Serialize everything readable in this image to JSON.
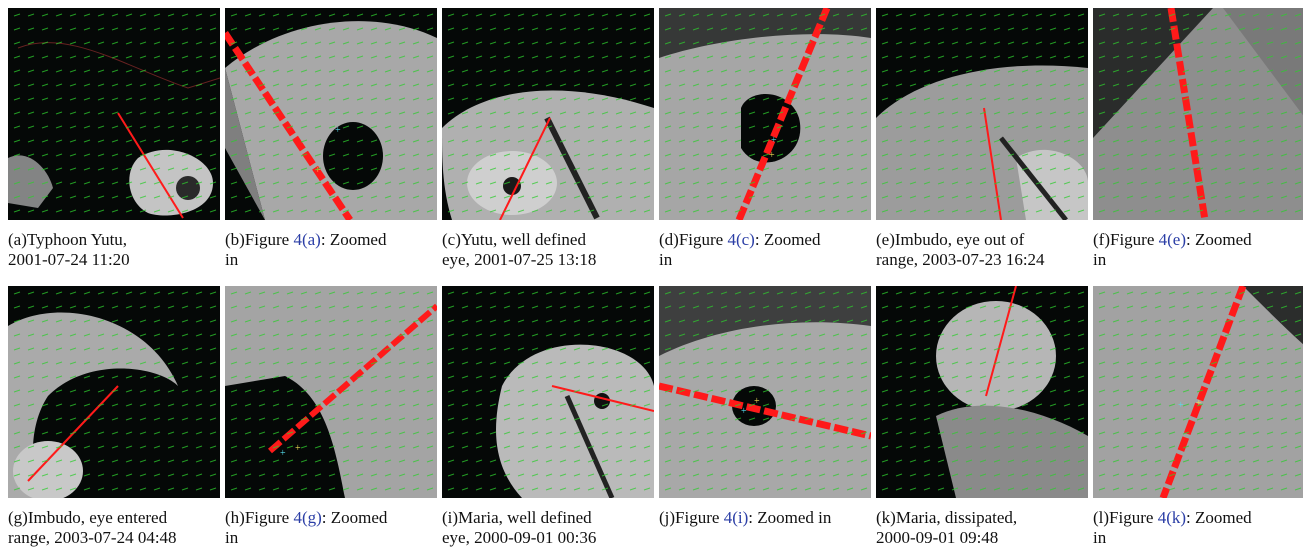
{
  "panels": [
    {
      "caption_pre": "(a)Typhoon Yutu,",
      "caption_ref": "",
      "caption_post": "",
      "caption_line2": "2001-07-24 11:20"
    },
    {
      "caption_pre": "(b)Figure ",
      "caption_ref": "4(a)",
      "caption_post": ": Zoomed",
      "caption_line2": "in"
    },
    {
      "caption_pre": "(c)Yutu, well defined",
      "caption_ref": "",
      "caption_post": "",
      "caption_line2": "eye, 2001-07-25 13:18"
    },
    {
      "caption_pre": "(d)Figure ",
      "caption_ref": "4(c)",
      "caption_post": ": Zoomed",
      "caption_line2": "in"
    },
    {
      "caption_pre": "(e)Imbudo, eye out of",
      "caption_ref": "",
      "caption_post": "",
      "caption_line2": "range, 2003-07-23 16:24"
    },
    {
      "caption_pre": "(f)Figure ",
      "caption_ref": "4(e)",
      "caption_post": ": Zoomed",
      "caption_line2": "in"
    },
    {
      "caption_pre": "(g)Imbudo, eye entered",
      "caption_ref": "",
      "caption_post": "",
      "caption_line2": "range, 2003-07-24 04:48"
    },
    {
      "caption_pre": "(h)Figure ",
      "caption_ref": "4(g)",
      "caption_post": ": Zoomed",
      "caption_line2": "in"
    },
    {
      "caption_pre": "(i)Maria, well defined",
      "caption_ref": "",
      "caption_post": "",
      "caption_line2": "eye, 2000-09-01 00:36"
    },
    {
      "caption_pre": "(j)Figure ",
      "caption_ref": "4(i)",
      "caption_post": ": Zoomed in",
      "caption_line2": ""
    },
    {
      "caption_pre": "(k)Maria, dissipated,",
      "caption_ref": "",
      "caption_post": "",
      "caption_line2": "2000-09-01 09:48"
    },
    {
      "caption_pre": "(l)Figure ",
      "caption_ref": "4(k)",
      "caption_post": ": Zoomed",
      "caption_line2": "in"
    }
  ],
  "colors": {
    "wind_vectors": "#2ecc2e",
    "track_line": "#ff1a1a",
    "coastline": "#cc3333",
    "cloud": "#b8b8b8",
    "ref_link": "#2b3ea6"
  }
}
